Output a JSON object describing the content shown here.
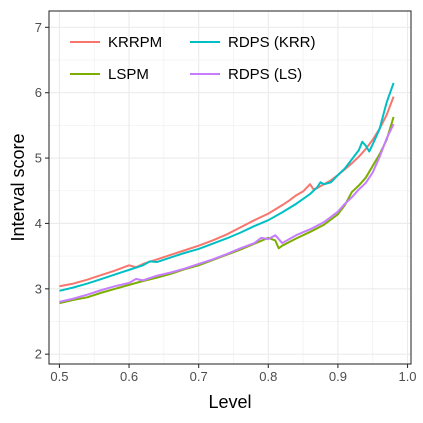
{
  "chart_data": {
    "type": "line",
    "title": "",
    "xlabel": "Level",
    "ylabel": "Interval score",
    "xlim": [
      0.485,
      1.005
    ],
    "ylim": [
      1.85,
      7.25
    ],
    "x_ticks": [
      0.5,
      0.6,
      0.7,
      0.8,
      0.9,
      1.0
    ],
    "x_tick_labels": [
      "0.5",
      "0.6",
      "0.7",
      "0.8",
      "0.9",
      "1.0"
    ],
    "y_ticks": [
      2,
      3,
      4,
      5,
      6,
      7
    ],
    "y_tick_labels": [
      "2",
      "3",
      "4",
      "5",
      "6",
      "7"
    ],
    "grid": true,
    "legend_position": "top-left, inside",
    "series": [
      {
        "name": "KRRPM",
        "color": "#F8766D",
        "points": [
          [
            0.5,
            3.04
          ],
          [
            0.52,
            3.08
          ],
          [
            0.54,
            3.14
          ],
          [
            0.56,
            3.21
          ],
          [
            0.58,
            3.28
          ],
          [
            0.6,
            3.36
          ],
          [
            0.61,
            3.33
          ],
          [
            0.62,
            3.38
          ],
          [
            0.64,
            3.45
          ],
          [
            0.66,
            3.52
          ],
          [
            0.68,
            3.59
          ],
          [
            0.7,
            3.66
          ],
          [
            0.72,
            3.74
          ],
          [
            0.74,
            3.83
          ],
          [
            0.76,
            3.94
          ],
          [
            0.78,
            4.05
          ],
          [
            0.8,
            4.15
          ],
          [
            0.82,
            4.28
          ],
          [
            0.83,
            4.35
          ],
          [
            0.84,
            4.43
          ],
          [
            0.85,
            4.49
          ],
          [
            0.86,
            4.6
          ],
          [
            0.865,
            4.52
          ],
          [
            0.87,
            4.54
          ],
          [
            0.88,
            4.6
          ],
          [
            0.89,
            4.66
          ],
          [
            0.9,
            4.74
          ],
          [
            0.91,
            4.83
          ],
          [
            0.92,
            4.92
          ],
          [
            0.93,
            5.02
          ],
          [
            0.94,
            5.14
          ],
          [
            0.95,
            5.28
          ],
          [
            0.96,
            5.45
          ],
          [
            0.97,
            5.66
          ],
          [
            0.98,
            5.94
          ]
        ]
      },
      {
        "name": "RDPS (KRR)",
        "color": "#00BFC4",
        "points": [
          [
            0.5,
            2.97
          ],
          [
            0.52,
            3.02
          ],
          [
            0.54,
            3.08
          ],
          [
            0.56,
            3.15
          ],
          [
            0.58,
            3.22
          ],
          [
            0.6,
            3.29
          ],
          [
            0.62,
            3.36
          ],
          [
            0.63,
            3.42
          ],
          [
            0.64,
            3.41
          ],
          [
            0.66,
            3.48
          ],
          [
            0.68,
            3.55
          ],
          [
            0.7,
            3.61
          ],
          [
            0.72,
            3.69
          ],
          [
            0.74,
            3.77
          ],
          [
            0.76,
            3.86
          ],
          [
            0.78,
            3.96
          ],
          [
            0.8,
            4.05
          ],
          [
            0.82,
            4.17
          ],
          [
            0.84,
            4.3
          ],
          [
            0.86,
            4.45
          ],
          [
            0.87,
            4.55
          ],
          [
            0.875,
            4.63
          ],
          [
            0.88,
            4.6
          ],
          [
            0.89,
            4.63
          ],
          [
            0.9,
            4.74
          ],
          [
            0.91,
            4.84
          ],
          [
            0.92,
            4.98
          ],
          [
            0.93,
            5.12
          ],
          [
            0.935,
            5.25
          ],
          [
            0.94,
            5.19
          ],
          [
            0.945,
            5.1
          ],
          [
            0.95,
            5.21
          ],
          [
            0.96,
            5.45
          ],
          [
            0.97,
            5.85
          ],
          [
            0.98,
            6.15
          ]
        ]
      },
      {
        "name": "LSPM",
        "color": "#7CAE00",
        "points": [
          [
            0.5,
            2.78
          ],
          [
            0.52,
            2.83
          ],
          [
            0.54,
            2.87
          ],
          [
            0.56,
            2.94
          ],
          [
            0.58,
            3.0
          ],
          [
            0.6,
            3.06
          ],
          [
            0.62,
            3.12
          ],
          [
            0.64,
            3.17
          ],
          [
            0.66,
            3.23
          ],
          [
            0.68,
            3.3
          ],
          [
            0.7,
            3.36
          ],
          [
            0.72,
            3.44
          ],
          [
            0.74,
            3.52
          ],
          [
            0.76,
            3.6
          ],
          [
            0.78,
            3.69
          ],
          [
            0.8,
            3.78
          ],
          [
            0.81,
            3.74
          ],
          [
            0.815,
            3.62
          ],
          [
            0.82,
            3.66
          ],
          [
            0.84,
            3.77
          ],
          [
            0.86,
            3.87
          ],
          [
            0.88,
            3.98
          ],
          [
            0.9,
            4.14
          ],
          [
            0.91,
            4.28
          ],
          [
            0.92,
            4.48
          ],
          [
            0.93,
            4.58
          ],
          [
            0.94,
            4.7
          ],
          [
            0.95,
            4.88
          ],
          [
            0.96,
            5.06
          ],
          [
            0.97,
            5.28
          ],
          [
            0.98,
            5.63
          ]
        ]
      },
      {
        "name": "RDPS (LS)",
        "color": "#C77CFF",
        "points": [
          [
            0.5,
            2.8
          ],
          [
            0.52,
            2.85
          ],
          [
            0.54,
            2.91
          ],
          [
            0.56,
            2.98
          ],
          [
            0.58,
            3.04
          ],
          [
            0.6,
            3.09
          ],
          [
            0.61,
            3.15
          ],
          [
            0.62,
            3.13
          ],
          [
            0.64,
            3.2
          ],
          [
            0.66,
            3.25
          ],
          [
            0.68,
            3.31
          ],
          [
            0.7,
            3.38
          ],
          [
            0.72,
            3.45
          ],
          [
            0.74,
            3.53
          ],
          [
            0.76,
            3.62
          ],
          [
            0.78,
            3.7
          ],
          [
            0.79,
            3.78
          ],
          [
            0.8,
            3.76
          ],
          [
            0.81,
            3.82
          ],
          [
            0.82,
            3.7
          ],
          [
            0.84,
            3.82
          ],
          [
            0.86,
            3.91
          ],
          [
            0.88,
            4.02
          ],
          [
            0.9,
            4.18
          ],
          [
            0.91,
            4.3
          ],
          [
            0.92,
            4.4
          ],
          [
            0.93,
            4.52
          ],
          [
            0.94,
            4.62
          ],
          [
            0.95,
            4.78
          ],
          [
            0.96,
            5.02
          ],
          [
            0.97,
            5.3
          ],
          [
            0.98,
            5.52
          ]
        ]
      }
    ],
    "legend_rows": [
      [
        "KRRPM",
        "RDPS (KRR)"
      ],
      [
        "LSPM",
        "RDPS (LS)"
      ]
    ]
  }
}
